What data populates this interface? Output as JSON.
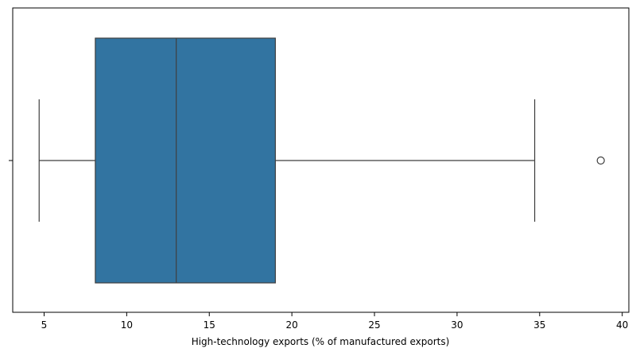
{
  "chart_data": {
    "type": "boxplot",
    "orientation": "horizontal",
    "xlabel": "High-technology exports (% of manufactured exports)",
    "ylabel": "",
    "xlim": [
      3.1,
      40.4
    ],
    "x_ticks": [
      5,
      10,
      15,
      20,
      25,
      30,
      35,
      40
    ],
    "grid": false,
    "series": [
      {
        "whisker_low": 4.7,
        "q1": 8.1,
        "median": 13.0,
        "q3": 19.0,
        "whisker_high": 34.7,
        "outliers": [
          38.7
        ]
      }
    ],
    "colors": {
      "box_fill": "#3274a1",
      "line": "#3f3f3f"
    }
  }
}
